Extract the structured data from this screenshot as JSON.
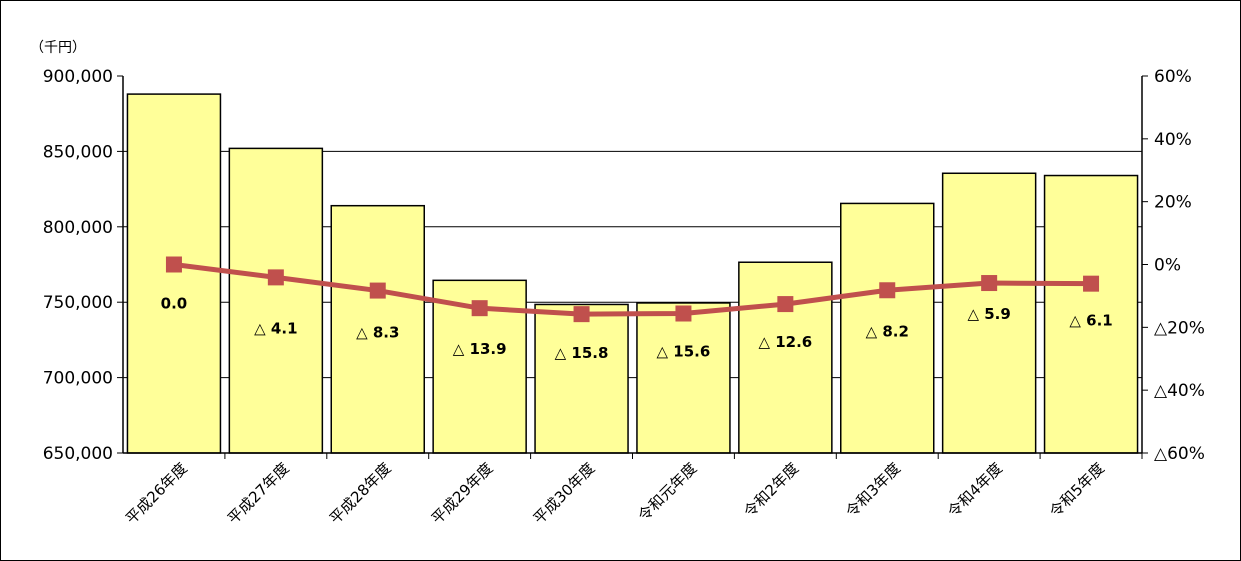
{
  "chart_data": {
    "type": "bar",
    "y_unit_label": "（千円）",
    "categories": [
      "平成26年度",
      "平成27年度",
      "平成28年度",
      "平成29年度",
      "平成30年度",
      "令和元年度",
      "令和2年度",
      "令和3年度",
      "令和4年度",
      "令和5年度"
    ],
    "series": [
      {
        "type": "bar",
        "values": [
          888000,
          852000,
          814000,
          764500,
          748500,
          749500,
          776500,
          815500,
          835500,
          834000
        ],
        "color": "#FFFF99"
      },
      {
        "type": "line",
        "axis": "right",
        "values": [
          0.0,
          -4.1,
          -8.3,
          -13.9,
          -15.8,
          -15.6,
          -12.6,
          -8.2,
          -5.9,
          -6.1
        ],
        "color": "#C0504D",
        "labels": [
          "0.0",
          "△ 4.1",
          "△ 8.3",
          "△ 13.9",
          "△ 15.8",
          "△ 15.6",
          "△ 12.6",
          "△ 8.2",
          "△ 5.9",
          "△ 6.1"
        ]
      }
    ],
    "ylim": [
      650000,
      900000
    ],
    "y_ticks": [
      "650,000",
      "700,000",
      "750,000",
      "800,000",
      "850,000",
      "900,000"
    ],
    "y2lim": [
      -60,
      60
    ],
    "y2_ticks": [
      "△60%",
      "△40%",
      "△20%",
      "0%",
      "20%",
      "40%",
      "60%"
    ],
    "grid": true,
    "legend": "none"
  }
}
